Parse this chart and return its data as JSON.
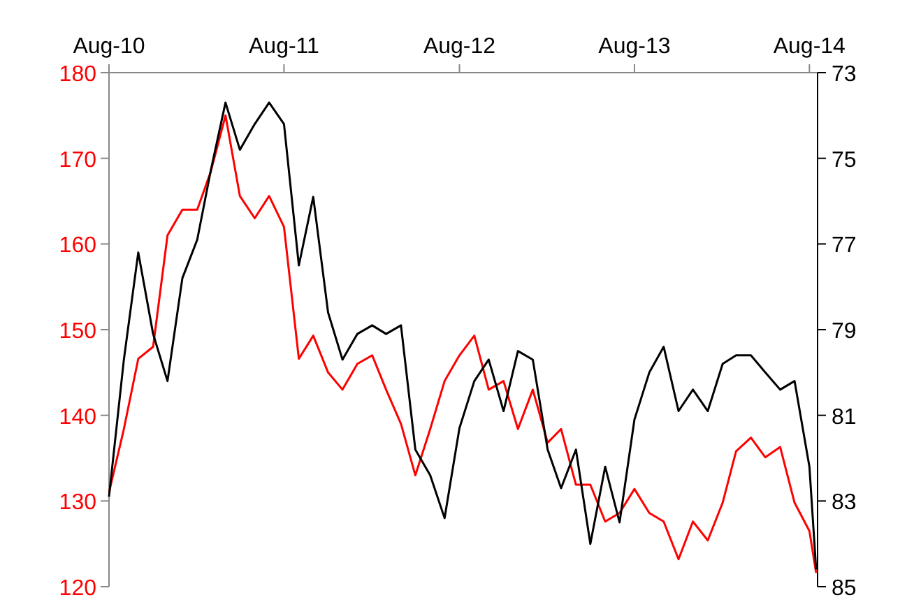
{
  "chart_data": {
    "type": "line",
    "x": [
      "2010-08",
      "2010-09",
      "2010-10",
      "2010-11",
      "2010-12",
      "2011-01",
      "2011-02",
      "2011-03",
      "2011-04",
      "2011-05",
      "2011-06",
      "2011-07",
      "2011-08",
      "2011-09",
      "2011-10",
      "2011-11",
      "2011-12",
      "2012-01",
      "2012-02",
      "2012-03",
      "2012-04",
      "2012-05",
      "2012-06",
      "2012-07",
      "2012-08",
      "2012-09",
      "2012-10",
      "2012-11",
      "2012-12",
      "2013-01",
      "2013-02",
      "2013-03",
      "2013-04",
      "2013-05",
      "2013-06",
      "2013-07",
      "2013-08",
      "2013-09",
      "2013-10",
      "2013-11",
      "2013-12",
      "2014-01",
      "2014-02",
      "2014-03",
      "2014-04",
      "2014-05",
      "2014-06",
      "2014-07",
      "2014-08",
      "2014-08-15"
    ],
    "series": [
      {
        "color": "#ff0000",
        "axis": "y",
        "values": [
          131,
          138.4,
          146.6,
          148,
          161,
          164,
          164,
          168.4,
          175,
          165.6,
          163,
          165.6,
          162,
          146.6,
          149.3,
          145,
          143,
          146,
          147,
          143,
          139,
          133,
          138.4,
          144,
          147,
          149.3,
          143,
          144,
          138.4,
          143,
          136.8,
          138.4,
          131.9,
          131.9,
          127.6,
          128.6,
          131.4,
          128.6,
          127.6,
          123.2,
          127.6,
          125.4,
          129.8,
          135.8,
          137.4,
          135.1,
          136.3,
          129.8,
          126.5,
          121.6
        ]
      },
      {
        "color": "#000000",
        "axis": "y2",
        "values": [
          82.9,
          79.7,
          77.2,
          79.1,
          80.2,
          77.8,
          76.9,
          75.3,
          73.7,
          74.8,
          74.2,
          73.7,
          74.2,
          77.5,
          75.9,
          78.6,
          79.7,
          79.1,
          78.9,
          79.1,
          78.9,
          81.8,
          82.4,
          83.4,
          81.3,
          80.2,
          79.7,
          80.9,
          79.5,
          79.7,
          81.8,
          82.7,
          81.8,
          84,
          82.2,
          83.5,
          81.1,
          80,
          79.4,
          80.9,
          80.4,
          80.9,
          79.8,
          79.6,
          79.6,
          80,
          80.4,
          80.2,
          82.2,
          84.6
        ]
      }
    ],
    "xlim": [
      "2010-08-01",
      "2014-08-18"
    ],
    "xticks": [
      {
        "value": "2010-08-01",
        "label": "Aug-10"
      },
      {
        "value": "2011-08-01",
        "label": "Aug-11"
      },
      {
        "value": "2012-08-01",
        "label": "Aug-12"
      },
      {
        "value": "2013-08-01",
        "label": "Aug-13"
      },
      {
        "value": "2014-08-01",
        "label": "Aug-14"
      }
    ],
    "ylim": [
      120,
      180
    ],
    "yticks": [
      120,
      130,
      140,
      150,
      160,
      170,
      180
    ],
    "y2lim": [
      85,
      73
    ],
    "y2ticks": [
      73,
      75,
      77,
      79,
      81,
      83,
      85
    ]
  }
}
